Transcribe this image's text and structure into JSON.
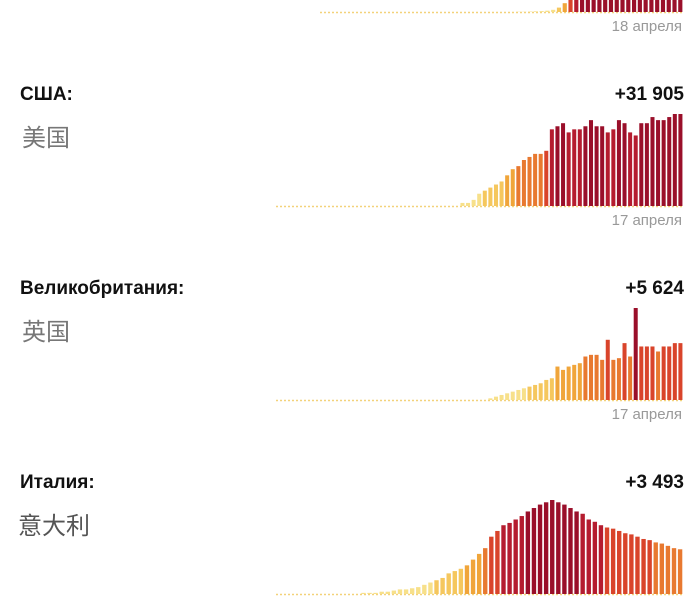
{
  "colors": {
    "dotted": "#f3d27a",
    "ramp": [
      "#f7e08a",
      "#f5c75e",
      "#f0a53a",
      "#e87930",
      "#d9442b",
      "#b51c2f",
      "#9a0f2a"
    ]
  },
  "sections": [
    {
      "country": "",
      "country_cn": "",
      "increase": "",
      "date": "18 апреля"
    },
    {
      "country": "США:",
      "country_cn": "美国",
      "increase": "+31 905",
      "date": "17 апреля"
    },
    {
      "country": "Великобритания:",
      "country_cn": "英国",
      "increase": "+5 624",
      "date": "17 апреля"
    },
    {
      "country": "Италия:",
      "country_cn": "意大利",
      "increase": "+3 493",
      "date": ""
    }
  ],
  "chart_data": [
    {
      "type": "bar",
      "title": "",
      "values": [
        0,
        0,
        0,
        0,
        0,
        0,
        0,
        0,
        0,
        0,
        0,
        0,
        0,
        0,
        0,
        0,
        0,
        0,
        0,
        0,
        0,
        0,
        0,
        0,
        0,
        0,
        0,
        0,
        0,
        0,
        0,
        0,
        0,
        0,
        1,
        1,
        2,
        3,
        4,
        6,
        10,
        20,
        40,
        60,
        80,
        100,
        100,
        100,
        100,
        100,
        100,
        100,
        100,
        100,
        100,
        100,
        100,
        100,
        100,
        100,
        100,
        100,
        100
      ]
    },
    {
      "type": "bar",
      "title": "",
      "values": [
        0,
        0,
        0,
        0,
        0,
        0,
        0,
        0,
        0,
        0,
        0,
        0,
        0,
        0,
        0,
        0,
        0,
        0,
        0,
        0,
        0,
        0,
        0,
        0,
        0,
        0,
        0,
        0,
        0,
        0,
        0,
        0,
        0,
        1,
        1,
        2,
        4,
        5,
        6,
        7,
        8,
        10,
        12,
        13,
        15,
        16,
        17,
        17,
        18,
        25,
        26,
        27,
        24,
        25,
        25,
        26,
        28,
        26,
        26,
        24,
        25,
        28,
        27,
        24,
        23,
        27,
        27,
        29,
        28,
        28,
        29,
        30,
        30
      ]
    },
    {
      "type": "bar",
      "title": "",
      "values": [
        0,
        0,
        0,
        0,
        0,
        0,
        0,
        0,
        0,
        0,
        0,
        0,
        0,
        0,
        0,
        0,
        0,
        0,
        0,
        0,
        0,
        0,
        0,
        0,
        0,
        0,
        0,
        0,
        0,
        0,
        0,
        0,
        0,
        0,
        0,
        0,
        0,
        0,
        1,
        2,
        3,
        4,
        5,
        6,
        7,
        8,
        9,
        10,
        12,
        13,
        20,
        18,
        20,
        21,
        22,
        26,
        27,
        27,
        24,
        36,
        24,
        25,
        34,
        26,
        55,
        32,
        32,
        32,
        29,
        32,
        32,
        34,
        34
      ]
    },
    {
      "type": "bar",
      "title": "",
      "values": [
        0,
        0,
        0,
        0,
        0,
        0,
        0,
        0,
        0,
        0,
        0,
        0,
        0,
        0,
        1,
        1,
        1,
        2,
        2,
        3,
        4,
        4,
        5,
        6,
        8,
        10,
        12,
        14,
        18,
        20,
        22,
        25,
        30,
        35,
        40,
        50,
        55,
        60,
        62,
        65,
        68,
        72,
        75,
        78,
        80,
        82,
        80,
        78,
        75,
        72,
        70,
        65,
        63,
        60,
        58,
        57,
        55,
        53,
        52,
        50,
        48,
        47,
        45,
        44,
        42,
        40,
        39
      ]
    }
  ]
}
